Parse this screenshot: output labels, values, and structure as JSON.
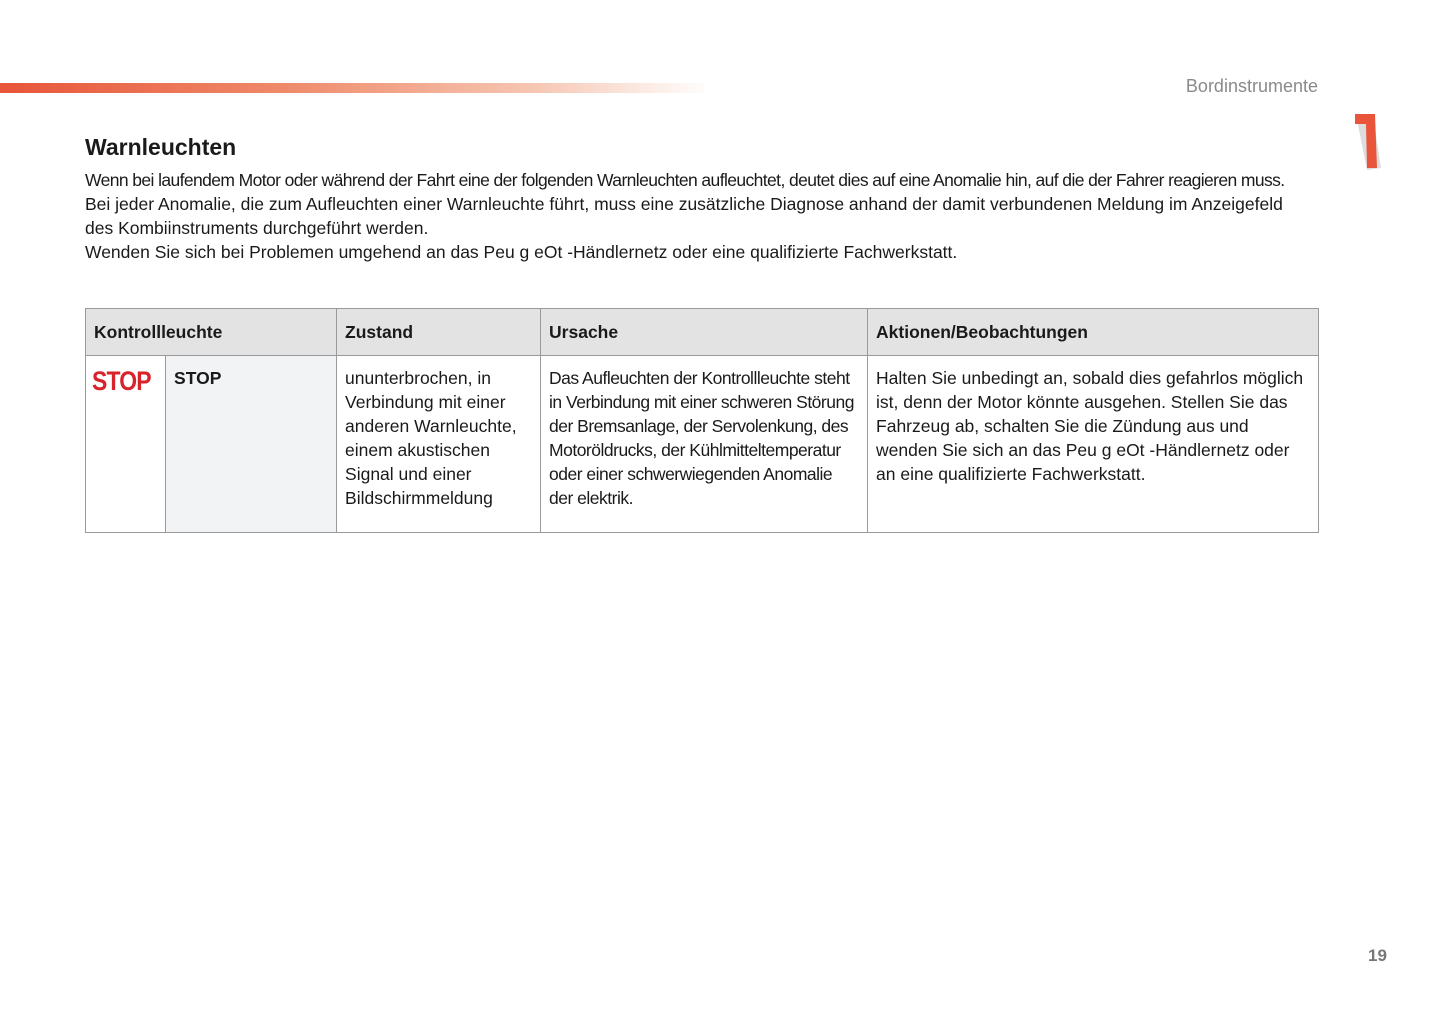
{
  "header": {
    "section": "Bordinstrumente",
    "chapter": "1",
    "accent_color": "#e8553a"
  },
  "title": "Warnleuchten",
  "intro": [
    "Wenn bei laufendem Motor oder während der Fahrt eine der folgenden Warnleuchten aufleuchtet, deutet dies auf eine Anomalie hin, auf die der Fahrer reagieren muss.",
    "Bei jeder Anomalie, die zum Aufleuchten einer Warnleuchte führt, muss eine zusätzliche Diagnose anhand der damit verbundenen Meldung im Anzeigefeld des Kombiinstruments durchgeführt werden.",
    "Wenden Sie sich bei Problemen umgehend an das Peu g eOt -Händlernetz oder eine qualifizierte Fachwerkstatt."
  ],
  "table": {
    "headers": [
      "Kontrollleuchte",
      "Zustand",
      "Ursache",
      "Aktionen/Beobachtungen"
    ],
    "rows": [
      {
        "icon_text": "STOP",
        "icon_color": "#d8232a",
        "name": "STOP",
        "zustand": "ununterbrochen, in Verbindung mit einer anderen Warnleuchte, einem akustischen Signal und einer Bildschirmmeldung",
        "ursache": "Das Aufleuchten der Kontrollleuchte steht in Verbindung mit einer schweren Störung der Bremsanlage, der Servolenkung, des Motoröldrucks, der Kühlmitteltemperatur oder einer schwerwiegenden Anomalie der elektrik.",
        "aktionen": "Halten Sie unbedingt an, sobald dies gefahrlos möglich ist, denn der Motor könnte ausgehen. Stellen Sie das Fahrzeug ab, schalten Sie die Zündung aus und wenden Sie sich an das Peu g eOt -Händlernetz oder an eine qualifizierte Fachwerkstatt."
      }
    ]
  },
  "page_number": "19"
}
